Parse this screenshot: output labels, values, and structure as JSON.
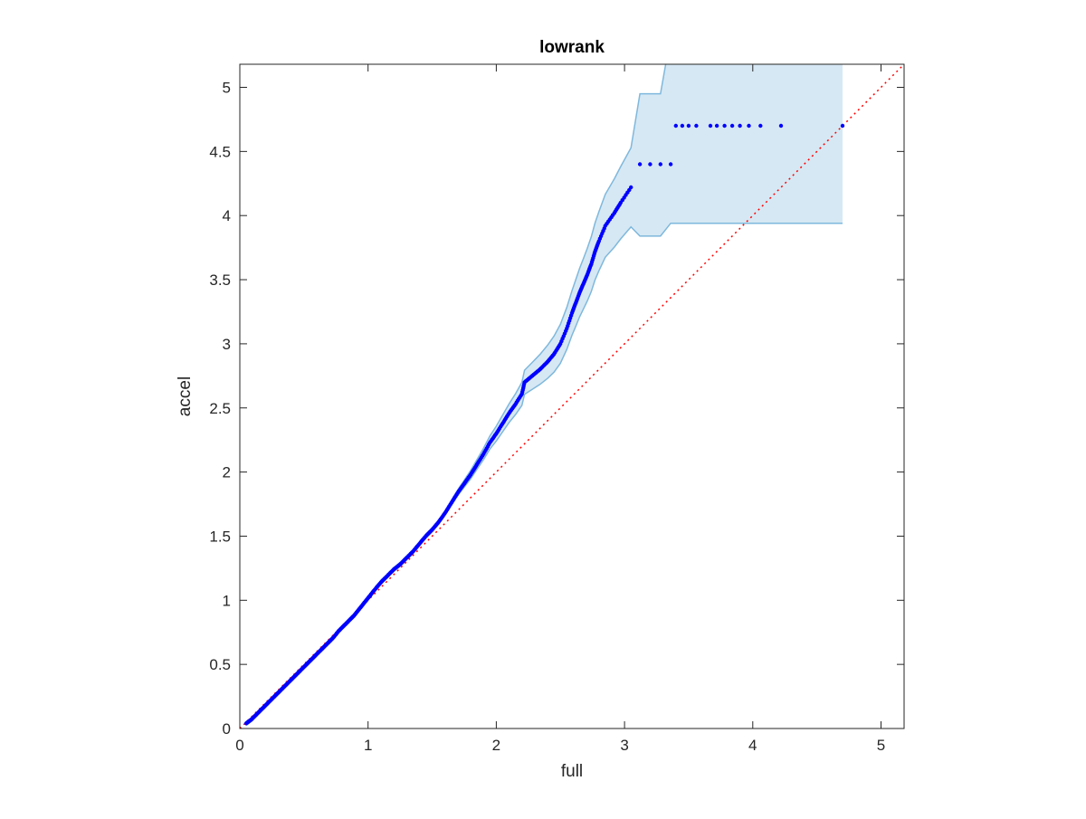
{
  "chart_data": {
    "type": "scatter",
    "title": "lowrank",
    "xlabel": "full",
    "ylabel": "accel",
    "xlim": [
      0,
      5.18
    ],
    "ylim": [
      0,
      5.18
    ],
    "xticks": [
      {
        "value": 0,
        "label": "0"
      },
      {
        "value": 1,
        "label": "1"
      },
      {
        "value": 2,
        "label": "2"
      },
      {
        "value": 3,
        "label": "3"
      },
      {
        "value": 4,
        "label": "4"
      },
      {
        "value": 5,
        "label": "5"
      }
    ],
    "yticks": [
      {
        "value": 0,
        "label": "0"
      },
      {
        "value": 0.5,
        "label": "0.5"
      },
      {
        "value": 1,
        "label": "1"
      },
      {
        "value": 1.5,
        "label": "1.5"
      },
      {
        "value": 2,
        "label": "2"
      },
      {
        "value": 2.5,
        "label": "2.5"
      },
      {
        "value": 3,
        "label": "3"
      },
      {
        "value": 3.5,
        "label": "3.5"
      },
      {
        "value": 4,
        "label": "4"
      },
      {
        "value": 4.5,
        "label": "4.5"
      },
      {
        "value": 5,
        "label": "5"
      }
    ],
    "grid": false,
    "box": true,
    "reference_line": {
      "type": "y=x",
      "color": "#ff0000",
      "style": "dotted"
    },
    "band_color": "#d6e8f4",
    "band_edge_color": "#7fb8dc",
    "point_color": "#0000ff",
    "series": [
      {
        "points": [
          [
            0.05,
            0.04
          ],
          [
            0.09,
            0.07
          ],
          [
            0.13,
            0.11
          ],
          [
            0.17,
            0.15
          ],
          [
            0.21,
            0.19
          ],
          [
            0.25,
            0.23
          ],
          [
            0.29,
            0.27
          ],
          [
            0.33,
            0.31
          ],
          [
            0.37,
            0.35
          ],
          [
            0.41,
            0.39
          ],
          [
            0.45,
            0.43
          ],
          [
            0.49,
            0.47
          ],
          [
            0.53,
            0.51
          ],
          [
            0.57,
            0.55
          ],
          [
            0.61,
            0.59
          ],
          [
            0.65,
            0.63
          ],
          [
            0.69,
            0.67
          ],
          [
            0.73,
            0.71
          ],
          [
            0.77,
            0.76
          ],
          [
            0.81,
            0.8
          ],
          [
            0.85,
            0.84
          ],
          [
            0.89,
            0.88
          ],
          [
            0.93,
            0.93
          ],
          [
            0.97,
            0.98
          ],
          [
            1.01,
            1.03
          ],
          [
            1.05,
            1.08
          ],
          [
            1.1,
            1.14
          ],
          [
            1.15,
            1.19
          ],
          [
            1.2,
            1.24
          ],
          [
            1.25,
            1.28
          ],
          [
            1.3,
            1.33
          ],
          [
            1.35,
            1.38
          ],
          [
            1.4,
            1.44
          ],
          [
            1.45,
            1.5
          ],
          [
            1.5,
            1.55
          ],
          [
            1.55,
            1.61
          ],
          [
            1.6,
            1.68
          ],
          [
            1.65,
            1.76
          ],
          [
            1.7,
            1.84
          ],
          [
            1.75,
            1.91
          ],
          [
            1.8,
            1.98
          ],
          [
            1.85,
            2.06
          ],
          [
            1.9,
            2.14
          ],
          [
            1.95,
            2.23
          ],
          [
            2.0,
            2.3
          ],
          [
            2.05,
            2.38
          ],
          [
            2.1,
            2.46
          ],
          [
            2.15,
            2.53
          ],
          [
            2.2,
            2.61
          ],
          [
            2.22,
            2.7
          ],
          [
            2.28,
            2.75
          ],
          [
            2.34,
            2.8
          ],
          [
            2.4,
            2.86
          ],
          [
            2.45,
            2.92
          ],
          [
            2.5,
            3.0
          ],
          [
            2.55,
            3.12
          ],
          [
            2.59,
            3.24
          ],
          [
            2.62,
            3.32
          ],
          [
            2.65,
            3.4
          ],
          [
            2.68,
            3.47
          ],
          [
            2.71,
            3.54
          ],
          [
            2.74,
            3.62
          ],
          [
            2.77,
            3.72
          ],
          [
            2.8,
            3.8
          ],
          [
            2.85,
            3.92
          ],
          [
            2.92,
            4.02
          ],
          [
            2.97,
            4.1
          ],
          [
            3.05,
            4.22
          ],
          [
            3.12,
            4.4
          ],
          [
            3.2,
            4.4
          ],
          [
            3.28,
            4.4
          ],
          [
            3.36,
            4.4
          ],
          [
            3.4,
            4.7
          ],
          [
            3.45,
            4.7
          ],
          [
            3.5,
            4.7
          ],
          [
            3.56,
            4.7
          ],
          [
            3.67,
            4.7
          ],
          [
            3.72,
            4.7
          ],
          [
            3.78,
            4.7
          ],
          [
            3.84,
            4.7
          ],
          [
            3.9,
            4.7
          ],
          [
            3.97,
            4.7
          ],
          [
            4.06,
            4.7
          ],
          [
            4.22,
            4.7
          ],
          [
            4.7,
            4.7
          ]
        ]
      }
    ]
  }
}
